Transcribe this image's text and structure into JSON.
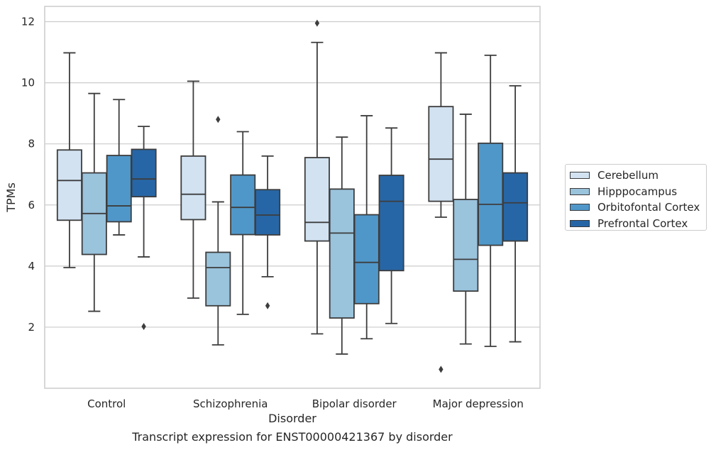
{
  "chart_data": {
    "type": "box",
    "caption": "Transcript expression for ENST00000421367 by disorder",
    "xlabel": "Disorder",
    "ylabel": "TPMs",
    "ylim": [
      0.0,
      12.5
    ],
    "yticks": [
      2,
      4,
      6,
      8,
      10,
      12
    ],
    "grid": true,
    "legend_position": "right",
    "categories": [
      "Control",
      "Schizophrenia",
      "Bipolar disorder",
      "Major depression"
    ],
    "series": [
      {
        "name": "Cerebellum",
        "color": "#d2e2f1",
        "boxes": [
          {
            "whislo": 3.95,
            "q1": 5.5,
            "med": 6.8,
            "q3": 7.8,
            "whishi": 10.98,
            "fliers": []
          },
          {
            "whislo": 2.95,
            "q1": 5.52,
            "med": 6.35,
            "q3": 7.6,
            "whishi": 10.05,
            "fliers": []
          },
          {
            "whislo": 1.78,
            "q1": 4.82,
            "med": 5.43,
            "q3": 7.55,
            "whishi": 11.32,
            "fliers": [
              11.95
            ]
          },
          {
            "whislo": 5.6,
            "q1": 6.12,
            "med": 7.5,
            "q3": 9.22,
            "whishi": 10.98,
            "fliers": [
              0.62
            ]
          }
        ]
      },
      {
        "name": "Hipppocampus",
        "color": "#9ac3dc",
        "boxes": [
          {
            "whislo": 2.52,
            "q1": 4.38,
            "med": 5.72,
            "q3": 7.05,
            "whishi": 9.65,
            "fliers": []
          },
          {
            "whislo": 1.42,
            "q1": 2.7,
            "med": 3.95,
            "q3": 4.45,
            "whishi": 6.1,
            "fliers": [
              8.8
            ]
          },
          {
            "whislo": 1.12,
            "q1": 2.3,
            "med": 5.08,
            "q3": 6.52,
            "whishi": 8.22,
            "fliers": []
          },
          {
            "whislo": 1.45,
            "q1": 3.18,
            "med": 4.22,
            "q3": 6.18,
            "whishi": 8.97,
            "fliers": []
          }
        ]
      },
      {
        "name": "Orbitofontal Cortex",
        "color": "#5097c9",
        "boxes": [
          {
            "whislo": 5.02,
            "q1": 5.45,
            "med": 5.97,
            "q3": 7.62,
            "whishi": 9.45,
            "fliers": []
          },
          {
            "whislo": 2.42,
            "q1": 5.03,
            "med": 5.92,
            "q3": 6.98,
            "whishi": 8.4,
            "fliers": []
          },
          {
            "whislo": 1.62,
            "q1": 2.77,
            "med": 4.12,
            "q3": 5.68,
            "whishi": 8.92,
            "fliers": []
          },
          {
            "whislo": 1.37,
            "q1": 4.68,
            "med": 6.02,
            "q3": 8.02,
            "whishi": 10.9,
            "fliers": []
          }
        ]
      },
      {
        "name": "Prefrontal Cortex",
        "color": "#2766a6",
        "boxes": [
          {
            "whislo": 4.3,
            "q1": 6.27,
            "med": 6.85,
            "q3": 7.82,
            "whishi": 8.57,
            "fliers": [
              2.02
            ]
          },
          {
            "whislo": 3.65,
            "q1": 5.02,
            "med": 5.67,
            "q3": 6.5,
            "whishi": 7.6,
            "fliers": [
              2.7
            ]
          },
          {
            "whislo": 2.12,
            "q1": 3.85,
            "med": 6.12,
            "q3": 6.97,
            "whishi": 8.52,
            "fliers": []
          },
          {
            "whislo": 1.52,
            "q1": 4.82,
            "med": 6.07,
            "q3": 7.05,
            "whishi": 9.9,
            "fliers": []
          }
        ]
      }
    ]
  }
}
